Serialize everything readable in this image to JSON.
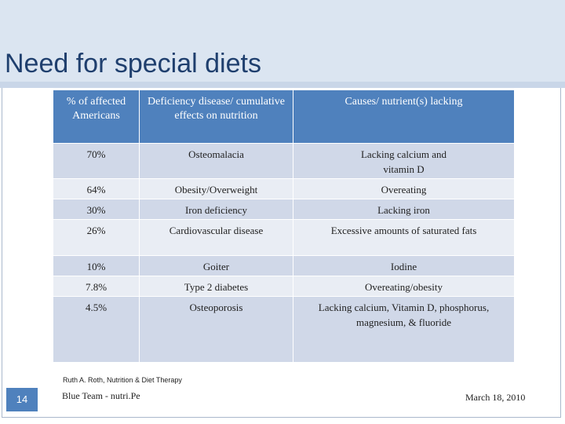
{
  "slide": {
    "title": "Need for special diets",
    "page_number": "14",
    "source": "Ruth A. Roth, Nutrition & Diet Therapy",
    "footer_left": "Blue Team - nutri.Pe",
    "footer_right": "March 18, 2010"
  },
  "table": {
    "headers": [
      "% of affected Americans",
      "Deficiency disease/ cumulative effects on nutrition",
      "Causes/ nutrient(s) lacking"
    ],
    "rows": [
      [
        "70%",
        "Osteomalacia",
        "Lacking calcium and vitamin D"
      ],
      [
        "64%",
        "Obesity/Overweight",
        "Overeating"
      ],
      [
        "30%",
        "Iron deficiency",
        "Lacking iron"
      ],
      [
        "26%",
        "Cardiovascular disease",
        "Excessive amounts of saturated fats"
      ],
      [
        "10%",
        "Goiter",
        "Iodine"
      ],
      [
        "7.8%",
        "Type 2 diabetes",
        "Overeating/obesity"
      ],
      [
        "4.5%",
        "Osteoporosis",
        "Lacking calcium, Vitamin D, phosphorus, magnesium, & fluoride"
      ]
    ]
  },
  "colors": {
    "header": "#4f81bd",
    "row_odd": "#d0d8e8",
    "row_even": "#e9edf4",
    "title_band": "#dbe5f1",
    "title_text": "#1f3f6e"
  }
}
